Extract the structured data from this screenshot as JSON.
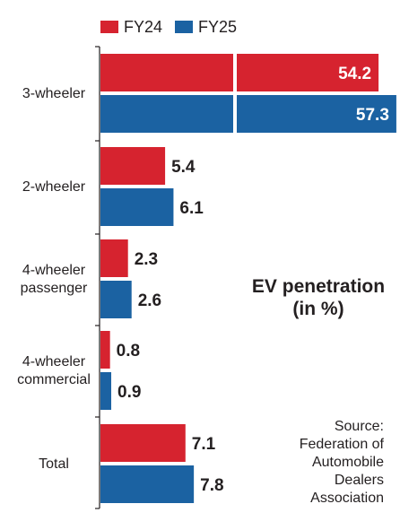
{
  "legend": [
    {
      "label": "FY24",
      "color": "#d6232f"
    },
    {
      "label": "FY25",
      "color": "#1b62a2"
    }
  ],
  "title_line1": "EV penetration",
  "title_line2": "(in %)",
  "source": {
    "lines": [
      "Source:",
      "Federation of",
      "Automobile",
      "Dealers",
      "Association"
    ]
  },
  "chart_data": {
    "type": "bar",
    "orientation": "horizontal",
    "categories": [
      [
        "3-wheeler"
      ],
      [
        "2-wheeler"
      ],
      [
        "4-wheeler",
        "passenger"
      ],
      [
        "4-wheeler",
        "commercial"
      ],
      [
        "Total"
      ]
    ],
    "series": [
      {
        "name": "FY24",
        "color": "#d6232f",
        "values": [
          54.2,
          5.4,
          2.3,
          0.8,
          7.1
        ]
      },
      {
        "name": "FY25",
        "color": "#1b62a2",
        "values": [
          57.3,
          6.1,
          2.6,
          0.9,
          7.8
        ]
      }
    ],
    "title": "EV penetration (in %)",
    "axis_break": true,
    "grid": false,
    "legend_position": "top-left"
  }
}
